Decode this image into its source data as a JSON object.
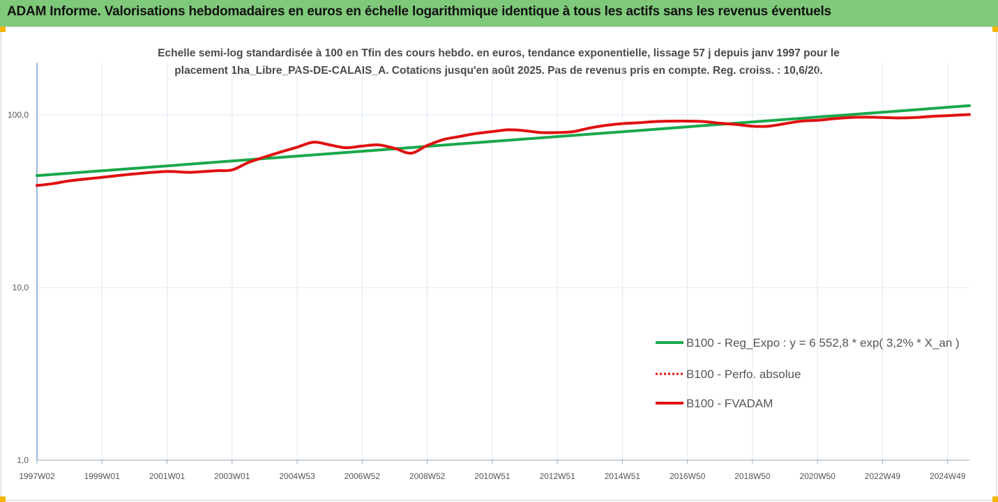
{
  "header": {
    "title": "ADAM Informe. Valorisations hebdomadaires en euros en échelle logarithmique identique à tous les actifs sans les revenus éventuels"
  },
  "chart_data": {
    "type": "line",
    "title_line1": "Echelle semi-log standardisée à 100 en Tfin des cours hebdo. en euros, tendance exponentielle, lissage 57 j depuis janv 1997 pour le",
    "title_line2": "placement 1ha_Libre_PAS-DE-CALAIS_A. Cotations jusqu'en août 2025. Pas de revenus pris en compte. Reg. croiss. : 10,6/20.",
    "y_scale": "log",
    "ylim": [
      1,
      200
    ],
    "y_ticks": [
      {
        "value": 100,
        "label": "100,0"
      },
      {
        "value": 10,
        "label": "10,0"
      },
      {
        "value": 1,
        "label": "1,0"
      }
    ],
    "xlim": [
      1997.0,
      2025.67
    ],
    "x_tick_labels": [
      "1997W02",
      "1999W01",
      "2001W01",
      "2003W01",
      "2004W53",
      "2006W52",
      "2008W52",
      "2010W51",
      "2012W51",
      "2014W51",
      "2016W50",
      "2018W50",
      "2020W50",
      "2022W49",
      "2024W49"
    ],
    "x_tick_years": [
      1997.0,
      1999.0,
      2001.0,
      2003.0,
      2005.0,
      2007.0,
      2009.0,
      2011.0,
      2013.0,
      2015.0,
      2017.0,
      2019.0,
      2021.0,
      2023.0,
      2025.0
    ],
    "grid": true,
    "legend_placement": "right",
    "series": [
      {
        "name": "B100 - Reg_Expo : y = 6 552,8 * exp( 3,2% *  X_an )",
        "color": "#1aa84a",
        "style": "solid",
        "x": [
          1997.0,
          2025.67
        ],
        "y": [
          44.5,
          113
        ]
      },
      {
        "name": "B100 - Perfo. absolue",
        "color": "#e01010",
        "style": "dotted",
        "x": [],
        "y": []
      },
      {
        "name": "B100 - FVADAM",
        "color": "#e01010",
        "style": "solid",
        "x": [
          1997.0,
          1997.5,
          1998.0,
          1999.0,
          2000.0,
          2001.0,
          2001.7,
          2002.5,
          2003.0,
          2003.5,
          2004.0,
          2004.5,
          2005.0,
          2005.5,
          2006.0,
          2006.5,
          2007.0,
          2007.5,
          2008.0,
          2008.5,
          2009.0,
          2009.5,
          2010.0,
          2010.5,
          2011.0,
          2011.5,
          2012.0,
          2012.5,
          2013.0,
          2013.5,
          2014.0,
          2014.5,
          2015.0,
          2015.5,
          2016.0,
          2016.5,
          2017.0,
          2017.5,
          2018.0,
          2018.5,
          2019.0,
          2019.5,
          2020.0,
          2020.5,
          2021.0,
          2021.5,
          2022.0,
          2022.5,
          2023.0,
          2023.5,
          2024.0,
          2024.5,
          2025.0,
          2025.67
        ],
        "y": [
          39,
          40,
          41.5,
          43.5,
          45.5,
          47,
          46.5,
          47.5,
          48,
          53,
          57,
          61,
          65,
          69.5,
          67,
          64.5,
          66,
          67,
          64,
          60,
          66.5,
          72,
          75,
          78,
          80,
          82,
          81,
          79,
          79,
          80,
          84,
          87,
          89,
          90,
          91.5,
          92,
          92,
          91.5,
          89.5,
          88,
          86,
          86,
          89,
          92,
          93,
          95,
          96.5,
          97,
          96.5,
          96,
          96.5,
          98,
          99,
          100.5
        ]
      }
    ]
  }
}
